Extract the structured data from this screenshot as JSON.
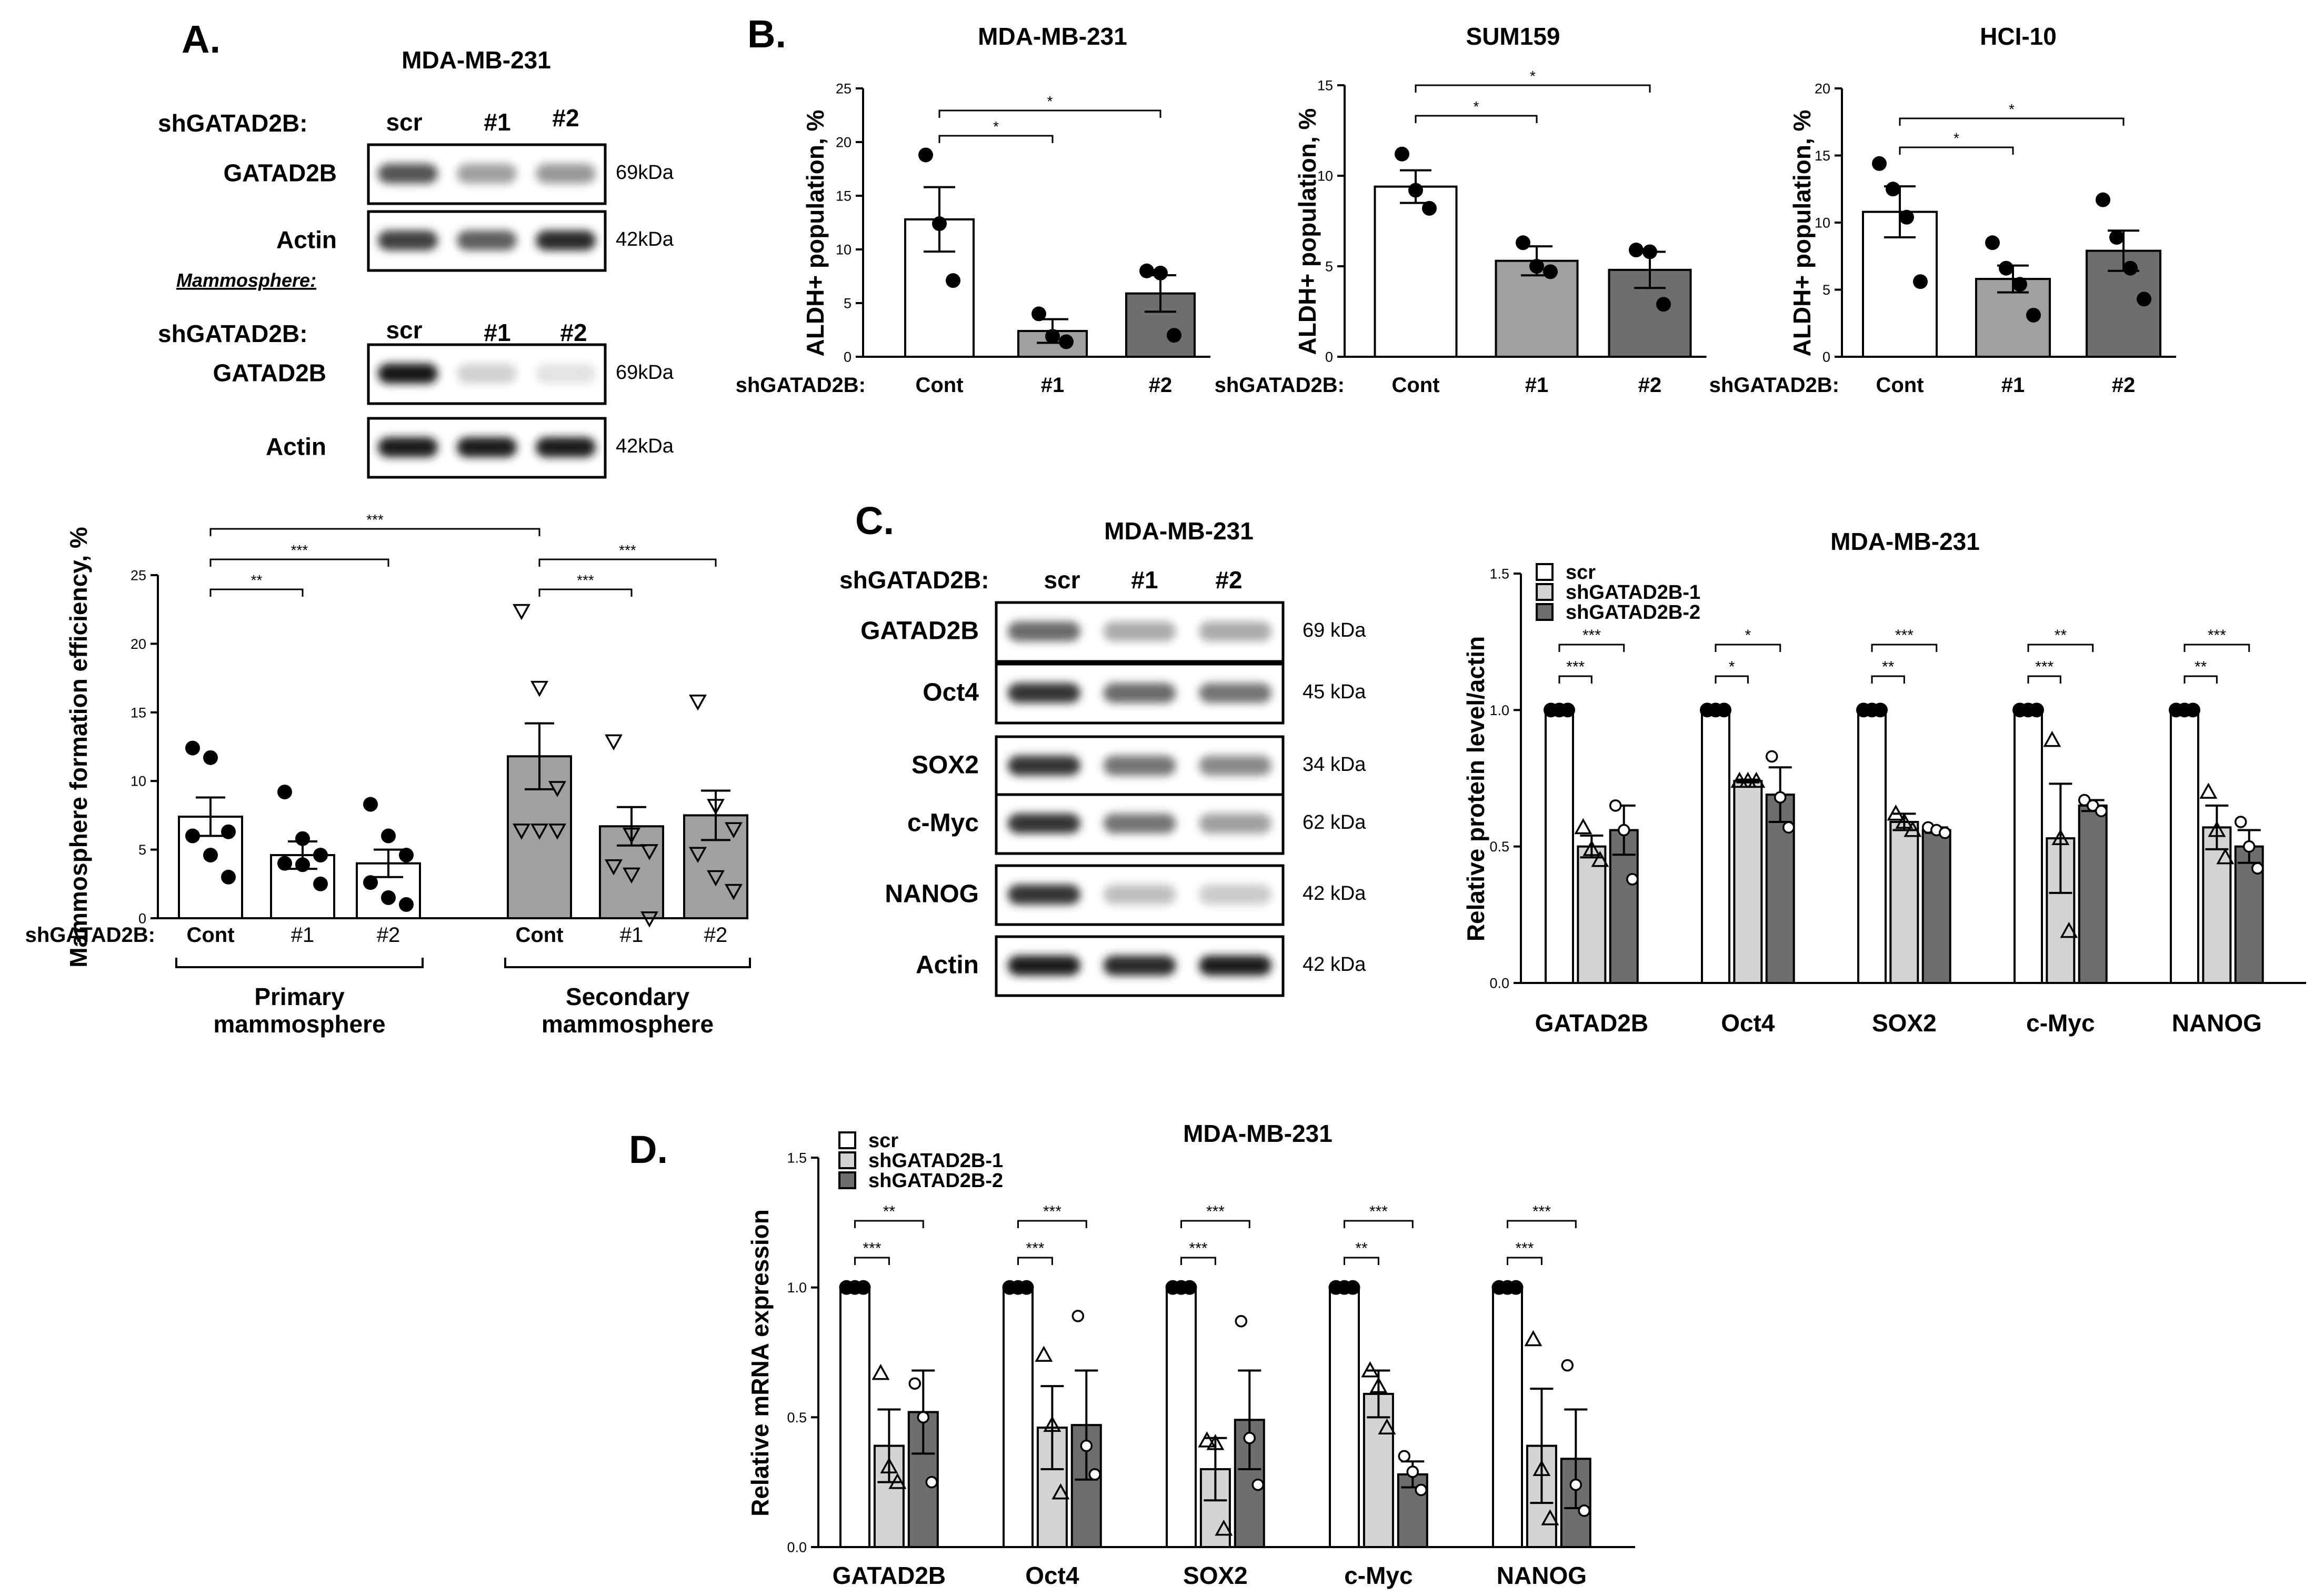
{
  "panel_labels": [
    "A.",
    "B.",
    "C.",
    "D."
  ],
  "colors": {
    "scr": "#ffffff",
    "sh1": "#d4d4d4",
    "sh2": "#6e6e6e",
    "grey": "#a0a0a0",
    "axis": "#000000"
  },
  "blotA": {
    "title": "MDA-MB-231",
    "row_label": "shGATAD2B:",
    "lanes": [
      "scr",
      "#1",
      "#2"
    ],
    "mammo_label": "Mammosphere:",
    "strips1": [
      {
        "name": "GATAD2B",
        "kda": "69kDa",
        "i": [
          0.7,
          0.35,
          0.38
        ]
      },
      {
        "name": "Actin",
        "kda": "42kDa",
        "i": [
          0.8,
          0.65,
          0.9
        ]
      }
    ],
    "strips2": [
      {
        "name": "GATAD2B",
        "kda": "69kDa",
        "i": [
          1.0,
          0.12,
          0.04
        ]
      },
      {
        "name": "Actin",
        "kda": "42kDa",
        "i": [
          0.95,
          0.95,
          0.95
        ]
      }
    ]
  },
  "blotC": {
    "title": "MDA-MB-231",
    "row_label": "shGATAD2B:",
    "lanes": [
      "scr",
      "#1",
      "#2"
    ],
    "strips": [
      {
        "name": "GATAD2B",
        "kda": "69 kDa",
        "i": [
          0.6,
          0.3,
          0.3
        ]
      },
      {
        "name": "Oct4",
        "kda": "45 kDa",
        "i": [
          0.85,
          0.6,
          0.55
        ]
      },
      {
        "name": "SOX2",
        "kda": "34 kDa",
        "i": [
          0.85,
          0.55,
          0.45
        ]
      },
      {
        "name": "c-Myc",
        "kda": "62 kDa",
        "i": [
          0.85,
          0.55,
          0.35
        ]
      },
      {
        "name": "NANOG",
        "kda": "42 kDa",
        "i": [
          0.85,
          0.2,
          0.15
        ]
      },
      {
        "name": "Actin",
        "kda": "42 kDa",
        "i": [
          0.95,
          0.9,
          0.95
        ]
      }
    ]
  },
  "chart_data": [
    {
      "id": "A_mammo",
      "type": "bar",
      "ylabel": "Mammosphere formation efficiency, %",
      "ylim": [
        0,
        25
      ],
      "yticks": [
        "0",
        "5",
        "10",
        "15",
        "20",
        "25"
      ],
      "row_label": "shGATAD2B:",
      "groups": [
        {
          "name": "Primary mammosphere",
          "labels": [
            "Cont",
            "#1",
            "#2"
          ],
          "values": [
            7.4,
            4.6,
            4.0
          ],
          "errors": [
            1.4,
            1.0,
            1.0
          ],
          "points": [
            [
              12.4,
              11.7,
              6.3,
              6.0,
              4.6,
              3.0
            ],
            [
              9.2,
              5.8,
              4.6,
              4.0,
              3.9,
              2.5
            ],
            [
              8.3,
              6.0,
              4.6,
              2.6,
              1.5,
              1.0
            ]
          ]
        },
        {
          "name": "Secondary mammosphere",
          "labels": [
            "Cont",
            "#1",
            "#2"
          ],
          "values": [
            11.8,
            6.7,
            7.5
          ],
          "errors": [
            2.4,
            1.4,
            1.8
          ],
          "points": [
            [
              22.4,
              16.8,
              9.5,
              6.4,
              6.4,
              6.4
            ],
            [
              12.9,
              6.1,
              4.9,
              3.8,
              3.2,
              0
            ],
            [
              15.8,
              8.2,
              6.5,
              4.7,
              3.0,
              2.0
            ]
          ]
        }
      ],
      "significance": [
        {
          "g": 0,
          "from": 0,
          "to": 1,
          "label": "**"
        },
        {
          "g": 0,
          "from": 0,
          "to": 2,
          "label": "***"
        },
        {
          "g": "x",
          "from": 0,
          "to": 0,
          "label": "***"
        },
        {
          "g": 1,
          "from": 0,
          "to": 1,
          "label": "***"
        },
        {
          "g": 1,
          "from": 0,
          "to": 2,
          "label": "***"
        }
      ]
    },
    {
      "id": "B_mda",
      "type": "bar",
      "title": "MDA-MB-231",
      "ylabel": "ALDH+ population, %",
      "ylim": [
        0,
        25
      ],
      "yticks": [
        "0",
        "5",
        "10",
        "15",
        "20",
        "25"
      ],
      "row_label": "shGATAD2B:",
      "categories": [
        "Cont",
        "#1",
        "#2"
      ],
      "values": [
        12.8,
        2.4,
        5.9
      ],
      "errors": [
        3.0,
        1.1,
        1.7
      ],
      "points": [
        [
          18.8,
          12.4,
          7.1
        ],
        [
          4.0,
          1.9,
          1.4
        ],
        [
          8.0,
          7.8,
          2.0
        ]
      ],
      "significance": [
        {
          "from": 0,
          "to": 1,
          "label": "*"
        },
        {
          "from": 0,
          "to": 2,
          "label": "*"
        }
      ]
    },
    {
      "id": "B_sum",
      "type": "bar",
      "title": "SUM159",
      "ylabel": "ALDH+ population, %",
      "ylim": [
        0,
        15
      ],
      "yticks": [
        "0",
        "5",
        "10",
        "15"
      ],
      "row_label": "shGATAD2B:",
      "categories": [
        "Cont",
        "#1",
        "#2"
      ],
      "values": [
        9.4,
        5.3,
        4.8
      ],
      "errors": [
        0.9,
        0.8,
        1.0
      ],
      "points": [
        [
          11.2,
          9.2,
          8.2
        ],
        [
          6.3,
          5.0,
          4.7
        ],
        [
          5.9,
          5.8,
          2.9
        ]
      ],
      "significance": [
        {
          "from": 0,
          "to": 1,
          "label": "*"
        },
        {
          "from": 0,
          "to": 2,
          "label": "*"
        }
      ]
    },
    {
      "id": "B_hci",
      "type": "bar",
      "title": "HCI-10",
      "ylabel": "ALDH+ population, %",
      "ylim": [
        0,
        20
      ],
      "yticks": [
        "0",
        "5",
        "10",
        "15",
        "20"
      ],
      "row_label": "shGATAD2B:",
      "categories": [
        "Cont",
        "#1",
        "#2"
      ],
      "values": [
        10.8,
        5.8,
        7.9
      ],
      "errors": [
        1.9,
        1.0,
        1.5
      ],
      "points": [
        [
          14.4,
          12.5,
          10.4,
          5.6
        ],
        [
          8.5,
          6.6,
          5.4,
          3.1
        ],
        [
          11.7,
          8.9,
          6.6,
          4.3
        ]
      ],
      "significance": [
        {
          "from": 0,
          "to": 1,
          "label": "*"
        },
        {
          "from": 0,
          "to": 2,
          "label": "*"
        }
      ]
    },
    {
      "id": "C_protein",
      "type": "bar",
      "title": "MDA-MB-231",
      "ylabel": "Relative protein level/actin",
      "ylim": [
        0,
        1.5
      ],
      "yticks": [
        "0.0",
        "0.5",
        "1.0",
        "1.5"
      ],
      "legend": [
        "scr",
        "shGATAD2B-1",
        "shGATAD2B-2"
      ],
      "categories": [
        "GATAD2B",
        "Oct4",
        "SOX2",
        "c-Myc",
        "NANOG"
      ],
      "series": [
        {
          "name": "scr",
          "values": [
            1.0,
            1.0,
            1.0,
            1.0,
            1.0
          ],
          "errors": [
            0,
            0,
            0,
            0,
            0
          ],
          "points": [
            [
              1,
              1,
              1
            ],
            [
              1,
              1,
              1
            ],
            [
              1,
              1,
              1
            ],
            [
              1,
              1,
              1
            ],
            [
              1,
              1,
              1
            ]
          ]
        },
        {
          "name": "shGATAD2B-1",
          "values": [
            0.5,
            0.74,
            0.59,
            0.53,
            0.57
          ],
          "errors": [
            0.04,
            0.005,
            0.03,
            0.2,
            0.08
          ],
          "points": [
            [
              0.57,
              0.49,
              0.45
            ],
            [
              0.74,
              0.74,
              0.74
            ],
            [
              0.62,
              0.59,
              0.56
            ],
            [
              0.89,
              0.53,
              0.19
            ],
            [
              0.7,
              0.56,
              0.46
            ]
          ]
        },
        {
          "name": "shGATAD2B-2",
          "values": [
            0.56,
            0.69,
            0.56,
            0.65,
            0.5
          ],
          "errors": [
            0.09,
            0.1,
            0.01,
            0.02,
            0.06
          ],
          "points": [
            [
              0.65,
              0.56,
              0.38
            ],
            [
              0.83,
              0.68,
              0.57
            ],
            [
              0.57,
              0.56,
              0.55
            ],
            [
              0.67,
              0.65,
              0.63
            ],
            [
              0.59,
              0.5,
              0.42
            ]
          ]
        }
      ],
      "significance": [
        [
          "***",
          "***"
        ],
        [
          "*",
          "*"
        ],
        [
          "**",
          "***"
        ],
        [
          "***",
          "**"
        ],
        [
          "**",
          "***"
        ]
      ]
    },
    {
      "id": "D_mrna",
      "type": "bar",
      "title": "MDA-MB-231",
      "ylabel": "Relative mRNA expression",
      "ylim": [
        0,
        1.5
      ],
      "yticks": [
        "0.0",
        "0.5",
        "1.0",
        "1.5"
      ],
      "legend": [
        "scr",
        "shGATAD2B-1",
        "shGATAD2B-2"
      ],
      "categories": [
        "GATAD2B",
        "Oct4",
        "SOX2",
        "c-Myc",
        "NANOG"
      ],
      "series": [
        {
          "name": "scr",
          "values": [
            1.0,
            1.0,
            1.0,
            1.0,
            1.0
          ],
          "errors": [
            0,
            0,
            0,
            0,
            0
          ],
          "points": [
            [
              1,
              1,
              1
            ],
            [
              1,
              1,
              1
            ],
            [
              1,
              1,
              1
            ],
            [
              1,
              1,
              1
            ],
            [
              1,
              1,
              1
            ]
          ]
        },
        {
          "name": "shGATAD2B-1",
          "values": [
            0.39,
            0.46,
            0.3,
            0.59,
            0.39
          ],
          "errors": [
            0.14,
            0.16,
            0.12,
            0.09,
            0.22
          ],
          "points": [
            [
              0.67,
              0.31,
              0.25
            ],
            [
              0.74,
              0.47,
              0.21
            ],
            [
              0.41,
              0.4,
              0.07
            ],
            [
              0.68,
              0.62,
              0.46
            ],
            [
              0.8,
              0.3,
              0.11
            ]
          ]
        },
        {
          "name": "shGATAD2B-2",
          "values": [
            0.52,
            0.47,
            0.49,
            0.28,
            0.34
          ],
          "errors": [
            0.16,
            0.21,
            0.19,
            0.05,
            0.19
          ],
          "points": [
            [
              0.63,
              0.5,
              0.25
            ],
            [
              0.89,
              0.39,
              0.28
            ],
            [
              0.87,
              0.42,
              0.24
            ],
            [
              0.35,
              0.29,
              0.22
            ],
            [
              0.7,
              0.24,
              0.14
            ]
          ]
        }
      ],
      "significance": [
        [
          "***",
          "**"
        ],
        [
          "***",
          "***"
        ],
        [
          "***",
          "***"
        ],
        [
          "**",
          "***"
        ],
        [
          "***",
          "***"
        ]
      ]
    }
  ]
}
